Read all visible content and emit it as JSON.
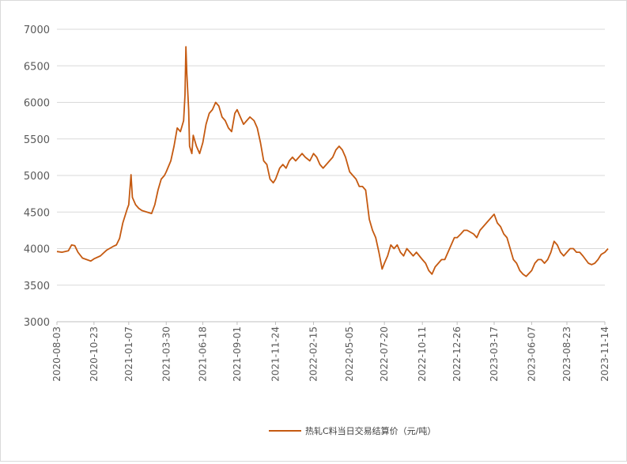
{
  "chart_data": {
    "type": "line",
    "title": "",
    "xlabel": "",
    "ylabel": "",
    "ylim": [
      3000,
      7000
    ],
    "yticks": [
      3000,
      3500,
      4000,
      4500,
      5000,
      5500,
      6000,
      6500,
      7000
    ],
    "grid": "horizontal",
    "legend_position": "bottom",
    "x_tick_labels": [
      "2020-08-03",
      "2020-10-23",
      "2021-01-07",
      "2021-03-30",
      "2021-06-18",
      "2021-09-01",
      "2021-11-24",
      "2022-02-15",
      "2022-05-05",
      "2022-07-20",
      "2022-10-11",
      "2022-12-26",
      "2023-03-17",
      "2023-06-07",
      "2023-08-23",
      "2023-11-14"
    ],
    "series": [
      {
        "name": "热轧C料当日交易结算价（元/吨）",
        "color": "#C55A11",
        "points": [
          [
            "2020-08-03",
            3960
          ],
          [
            "2020-08-14",
            3950
          ],
          [
            "2020-08-28",
            3970
          ],
          [
            "2020-09-04",
            4050
          ],
          [
            "2020-09-11",
            4040
          ],
          [
            "2020-09-18",
            3950
          ],
          [
            "2020-09-28",
            3870
          ],
          [
            "2020-10-16",
            3830
          ],
          [
            "2020-10-23",
            3860
          ],
          [
            "2020-11-06",
            3900
          ],
          [
            "2020-11-20",
            3980
          ],
          [
            "2020-12-04",
            4030
          ],
          [
            "2020-12-11",
            4050
          ],
          [
            "2020-12-18",
            4140
          ],
          [
            "2020-12-25",
            4350
          ],
          [
            "2021-01-04",
            4550
          ],
          [
            "2021-01-07",
            4600
          ],
          [
            "2021-01-12",
            5010
          ],
          [
            "2021-01-15",
            4700
          ],
          [
            "2021-01-22",
            4600
          ],
          [
            "2021-01-29",
            4550
          ],
          [
            "2021-02-05",
            4520
          ],
          [
            "2021-02-26",
            4480
          ],
          [
            "2021-03-05",
            4600
          ],
          [
            "2021-03-12",
            4800
          ],
          [
            "2021-03-19",
            4950
          ],
          [
            "2021-03-26",
            5000
          ],
          [
            "2021-03-30",
            5050
          ],
          [
            "2021-04-09",
            5200
          ],
          [
            "2021-04-16",
            5400
          ],
          [
            "2021-04-23",
            5650
          ],
          [
            "2021-04-30",
            5600
          ],
          [
            "2021-05-07",
            5750
          ],
          [
            "2021-05-10",
            6100
          ],
          [
            "2021-05-12",
            6760
          ],
          [
            "2021-05-14",
            6400
          ],
          [
            "2021-05-18",
            5900
          ],
          [
            "2021-05-20",
            5400
          ],
          [
            "2021-05-25",
            5300
          ],
          [
            "2021-05-28",
            5550
          ],
          [
            "2021-06-04",
            5400
          ],
          [
            "2021-06-11",
            5300
          ],
          [
            "2021-06-18",
            5450
          ],
          [
            "2021-06-25",
            5700
          ],
          [
            "2021-07-02",
            5850
          ],
          [
            "2021-07-09",
            5900
          ],
          [
            "2021-07-16",
            6000
          ],
          [
            "2021-07-23",
            5950
          ],
          [
            "2021-07-30",
            5800
          ],
          [
            "2021-08-06",
            5750
          ],
          [
            "2021-08-13",
            5650
          ],
          [
            "2021-08-20",
            5600
          ],
          [
            "2021-08-27",
            5850
          ],
          [
            "2021-09-01",
            5900
          ],
          [
            "2021-09-08",
            5800
          ],
          [
            "2021-09-15",
            5700
          ],
          [
            "2021-09-22",
            5750
          ],
          [
            "2021-09-29",
            5800
          ],
          [
            "2021-10-08",
            5750
          ],
          [
            "2021-10-15",
            5650
          ],
          [
            "2021-10-22",
            5450
          ],
          [
            "2021-10-29",
            5200
          ],
          [
            "2021-11-05",
            5150
          ],
          [
            "2021-11-12",
            4950
          ],
          [
            "2021-11-19",
            4900
          ],
          [
            "2021-11-24",
            4950
          ],
          [
            "2021-12-03",
            5100
          ],
          [
            "2021-12-10",
            5150
          ],
          [
            "2021-12-17",
            5100
          ],
          [
            "2021-12-24",
            5200
          ],
          [
            "2021-12-31",
            5250
          ],
          [
            "2022-01-07",
            5200
          ],
          [
            "2022-01-14",
            5250
          ],
          [
            "2022-01-21",
            5300
          ],
          [
            "2022-01-28",
            5250
          ],
          [
            "2022-02-07",
            5200
          ],
          [
            "2022-02-15",
            5300
          ],
          [
            "2022-02-22",
            5250
          ],
          [
            "2022-03-01",
            5150
          ],
          [
            "2022-03-08",
            5100
          ],
          [
            "2022-03-15",
            5150
          ],
          [
            "2022-03-22",
            5200
          ],
          [
            "2022-03-29",
            5250
          ],
          [
            "2022-04-05",
            5350
          ],
          [
            "2022-04-12",
            5400
          ],
          [
            "2022-04-19",
            5350
          ],
          [
            "2022-04-26",
            5250
          ],
          [
            "2022-05-05",
            5050
          ],
          [
            "2022-05-12",
            5000
          ],
          [
            "2022-05-19",
            4950
          ],
          [
            "2022-05-26",
            4850
          ],
          [
            "2022-06-02",
            4850
          ],
          [
            "2022-06-09",
            4800
          ],
          [
            "2022-06-13",
            4600
          ],
          [
            "2022-06-17",
            4400
          ],
          [
            "2022-06-24",
            4250
          ],
          [
            "2022-07-01",
            4150
          ],
          [
            "2022-07-08",
            3950
          ],
          [
            "2022-07-15",
            3720
          ],
          [
            "2022-07-20",
            3800
          ],
          [
            "2022-07-27",
            3900
          ],
          [
            "2022-08-03",
            4050
          ],
          [
            "2022-08-10",
            4000
          ],
          [
            "2022-08-17",
            4050
          ],
          [
            "2022-08-24",
            3950
          ],
          [
            "2022-08-31",
            3900
          ],
          [
            "2022-09-07",
            4000
          ],
          [
            "2022-09-14",
            3950
          ],
          [
            "2022-09-21",
            3900
          ],
          [
            "2022-09-28",
            3950
          ],
          [
            "2022-10-11",
            3850
          ],
          [
            "2022-10-18",
            3800
          ],
          [
            "2022-10-25",
            3700
          ],
          [
            "2022-11-01",
            3650
          ],
          [
            "2022-11-08",
            3750
          ],
          [
            "2022-11-15",
            3800
          ],
          [
            "2022-11-22",
            3850
          ],
          [
            "2022-11-29",
            3850
          ],
          [
            "2022-12-06",
            3950
          ],
          [
            "2022-12-13",
            4050
          ],
          [
            "2022-12-20",
            4150
          ],
          [
            "2022-12-26",
            4150
          ],
          [
            "2023-01-03",
            4200
          ],
          [
            "2023-01-10",
            4250
          ],
          [
            "2023-01-17",
            4250
          ],
          [
            "2023-01-31",
            4200
          ],
          [
            "2023-02-07",
            4150
          ],
          [
            "2023-02-14",
            4250
          ],
          [
            "2023-02-21",
            4300
          ],
          [
            "2023-02-28",
            4350
          ],
          [
            "2023-03-07",
            4400
          ],
          [
            "2023-03-14",
            4450
          ],
          [
            "2023-03-17",
            4470
          ],
          [
            "2023-03-24",
            4350
          ],
          [
            "2023-03-31",
            4300
          ],
          [
            "2023-04-07",
            4200
          ],
          [
            "2023-04-14",
            4150
          ],
          [
            "2023-04-21",
            4000
          ],
          [
            "2023-04-28",
            3850
          ],
          [
            "2023-05-05",
            3800
          ],
          [
            "2023-05-12",
            3700
          ],
          [
            "2023-05-19",
            3650
          ],
          [
            "2023-05-26",
            3620
          ],
          [
            "2023-06-07",
            3700
          ],
          [
            "2023-06-14",
            3800
          ],
          [
            "2023-06-21",
            3850
          ],
          [
            "2023-06-28",
            3850
          ],
          [
            "2023-07-05",
            3800
          ],
          [
            "2023-07-12",
            3850
          ],
          [
            "2023-07-19",
            3950
          ],
          [
            "2023-07-26",
            4100
          ],
          [
            "2023-08-02",
            4050
          ],
          [
            "2023-08-09",
            3950
          ],
          [
            "2023-08-16",
            3900
          ],
          [
            "2023-08-23",
            3950
          ],
          [
            "2023-08-30",
            4000
          ],
          [
            "2023-09-06",
            4000
          ],
          [
            "2023-09-13",
            3950
          ],
          [
            "2023-09-20",
            3950
          ],
          [
            "2023-09-27",
            3900
          ],
          [
            "2023-10-09",
            3800
          ],
          [
            "2023-10-16",
            3780
          ],
          [
            "2023-10-23",
            3800
          ],
          [
            "2023-10-30",
            3850
          ],
          [
            "2023-11-06",
            3920
          ],
          [
            "2023-11-14",
            3950
          ],
          [
            "2023-11-21",
            4000
          ]
        ]
      }
    ]
  }
}
